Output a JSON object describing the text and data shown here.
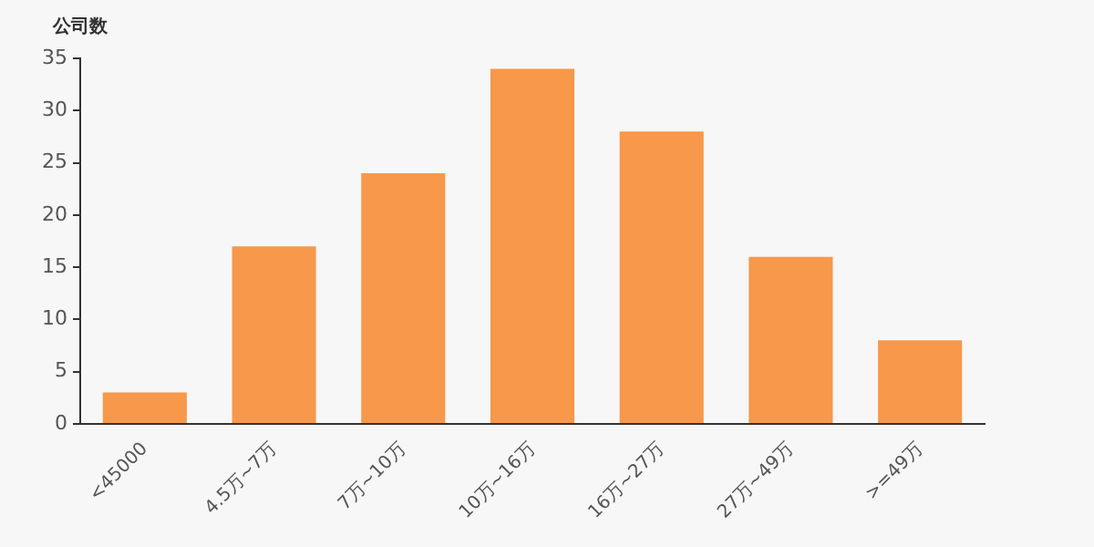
{
  "chart_data": {
    "type": "bar",
    "ylabel": "公司数",
    "categories": [
      "<45000",
      "4.5万~7万",
      "7万~10万",
      "10万~16万",
      "16万~27万",
      "27万~49万",
      ">=49万"
    ],
    "values": [
      3,
      17,
      24,
      34,
      28,
      16,
      8
    ],
    "color": "#f7984a",
    "ylim": [
      0,
      35
    ],
    "yticks": [
      0,
      5,
      10,
      15,
      20,
      25,
      30,
      35
    ],
    "grid": false,
    "legend": false
  }
}
